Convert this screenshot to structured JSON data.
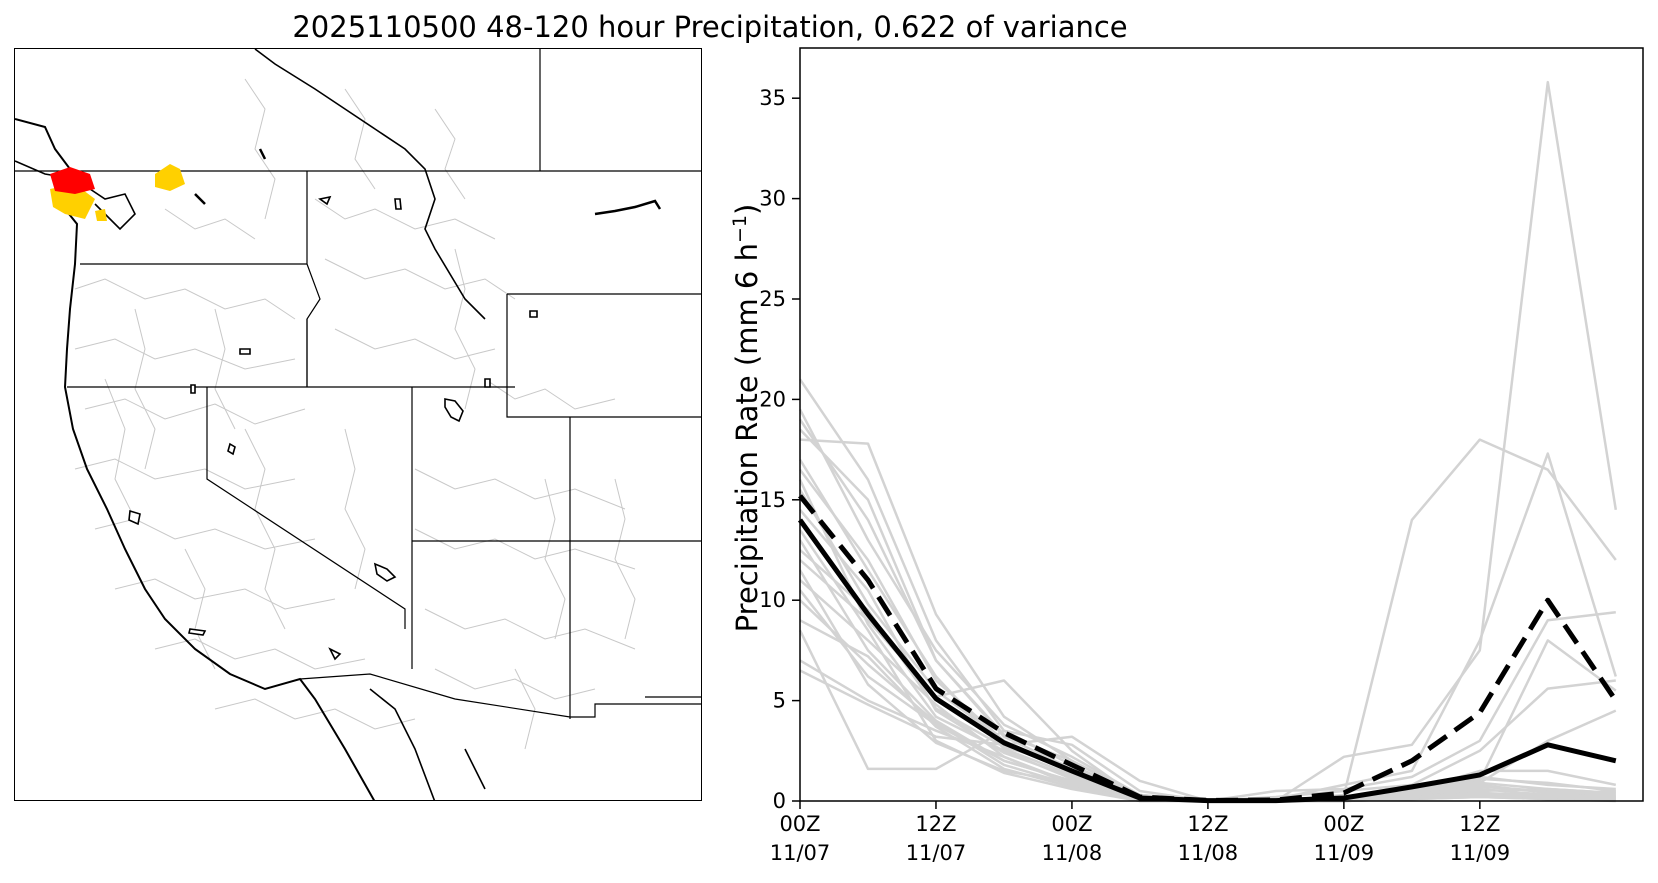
{
  "title": "2025110500 48-120 hour Precipitation, 0.622 of variance",
  "map": {
    "description_regions": [
      "Washington",
      "Oregon",
      "California",
      "Nevada",
      "Idaho",
      "Utah",
      "Arizona",
      "Montana",
      "Wyoming",
      "British Columbia"
    ],
    "colors": {
      "border": "#000000",
      "basin": "#c8c8c8",
      "highlight_high": "#ff0000",
      "highlight_mid": "#ffd000",
      "lake_fill": "#ffffff"
    }
  },
  "chart_data": {
    "type": "line",
    "title": "",
    "xlabel": "",
    "ylabel": "Precipitation Rate (mm 6 h",
    "ylabel_sup": "−1",
    "ylabel_close": ")",
    "ylim": [
      0,
      37.5
    ],
    "yticks": [
      0,
      5,
      10,
      15,
      20,
      25,
      30,
      35
    ],
    "x": [
      0,
      1,
      2,
      3,
      4,
      5,
      6,
      7,
      8,
      9,
      10,
      11,
      12
    ],
    "xlim": [
      0,
      12.4
    ],
    "xticks": [
      {
        "x": 0,
        "line1": "00Z",
        "line2": "11/07"
      },
      {
        "x": 2,
        "line1": "12Z",
        "line2": "11/07"
      },
      {
        "x": 4,
        "line1": "00Z",
        "line2": "11/08"
      },
      {
        "x": 6,
        "line1": "12Z",
        "line2": "11/08"
      },
      {
        "x": 8,
        "line1": "00Z",
        "line2": "11/09"
      },
      {
        "x": 10,
        "line1": "12Z",
        "line2": "11/09"
      }
    ],
    "series": [
      {
        "name": "mean",
        "style": "solid",
        "color": "#000000",
        "width": 5,
        "values": [
          14.0,
          9.3,
          5.1,
          2.9,
          1.5,
          0.15,
          0.02,
          0.02,
          0.15,
          0.7,
          1.3,
          2.8,
          2.0
        ]
      },
      {
        "name": "selected",
        "style": "dashed",
        "color": "#000000",
        "width": 5,
        "values": [
          15.2,
          11.0,
          5.6,
          3.4,
          1.8,
          0.2,
          0.03,
          0.05,
          0.4,
          2.0,
          4.4,
          10.0,
          5.0
        ]
      }
    ],
    "members": [
      [
        21.0,
        16.0,
        8.0,
        3.5,
        1.8,
        0.2,
        0.0,
        0.0,
        0.3,
        14.0,
        18.0,
        16.5,
        12.0
      ],
      [
        18.0,
        17.8,
        9.3,
        4.2,
        2.0,
        0.3,
        0.0,
        0.0,
        2.2,
        2.8,
        7.5,
        35.8,
        14.5
      ],
      [
        16.5,
        12.0,
        6.0,
        3.0,
        1.5,
        0.2,
        0.0,
        0.1,
        0.8,
        1.5,
        8.0,
        17.3,
        6.2
      ],
      [
        12.0,
        9.0,
        5.2,
        6.0,
        2.5,
        0.1,
        0.0,
        0.5,
        0.6,
        1.2,
        3.0,
        9.0,
        9.4
      ],
      [
        6.5,
        4.8,
        3.2,
        2.8,
        3.2,
        1.0,
        0.0,
        0.2,
        0.5,
        0.8,
        2.5,
        5.6,
        6.0
      ],
      [
        8.5,
        1.6,
        1.6,
        3.5,
        2.8,
        0.5,
        0.0,
        0.0,
        0.2,
        0.4,
        1.0,
        8.0,
        5.5
      ],
      [
        19.0,
        14.0,
        7.0,
        3.2,
        1.6,
        0.3,
        0.0,
        0.0,
        0.1,
        0.3,
        0.9,
        3.0,
        4.5
      ],
      [
        17.0,
        11.5,
        6.2,
        2.6,
        1.3,
        0.2,
        0.0,
        0.0,
        0.1,
        0.5,
        1.5,
        1.5,
        0.8
      ],
      [
        14.5,
        10.5,
        4.5,
        2.4,
        1.2,
        0.1,
        0.0,
        0.0,
        0.2,
        0.6,
        1.2,
        0.8,
        0.6
      ],
      [
        13.0,
        7.5,
        4.0,
        2.0,
        1.0,
        0.1,
        0.0,
        0.0,
        0.1,
        0.2,
        0.5,
        0.6,
        0.4
      ],
      [
        11.0,
        8.0,
        4.8,
        2.2,
        0.9,
        0.1,
        0.0,
        0.0,
        0.0,
        0.3,
        0.6,
        0.3,
        0.5
      ],
      [
        10.0,
        6.8,
        3.9,
        1.8,
        0.8,
        0.0,
        0.0,
        0.0,
        0.0,
        0.2,
        0.4,
        0.2,
        0.3
      ],
      [
        15.5,
        9.8,
        5.5,
        3.0,
        1.4,
        0.1,
        0.0,
        0.0,
        0.1,
        0.4,
        0.8,
        0.4,
        0.2
      ],
      [
        9.0,
        7.2,
        3.7,
        1.6,
        0.7,
        0.1,
        0.0,
        0.0,
        0.0,
        0.1,
        0.3,
        0.1,
        0.2
      ],
      [
        7.0,
        5.0,
        3.5,
        2.2,
        0.8,
        0.1,
        0.0,
        0.0,
        0.0,
        0.1,
        0.2,
        0.1,
        0.0
      ],
      [
        19.5,
        13.0,
        7.5,
        3.8,
        2.2,
        0.3,
        0.0,
        0.0,
        0.1,
        0.5,
        1.1,
        0.9,
        0.5
      ],
      [
        16.0,
        8.8,
        4.2,
        2.5,
        1.1,
        0.1,
        0.0,
        0.0,
        0.1,
        0.3,
        0.7,
        0.5,
        0.3
      ],
      [
        12.5,
        9.5,
        4.6,
        2.7,
        1.7,
        0.2,
        0.0,
        0.0,
        0.1,
        0.2,
        0.4,
        0.3,
        0.2
      ],
      [
        11.5,
        5.8,
        2.9,
        1.5,
        0.9,
        0.1,
        0.0,
        0.0,
        0.0,
        0.1,
        0.2,
        0.1,
        0.1
      ],
      [
        18.5,
        15.0,
        7.0,
        3.3,
        2.0,
        0.2,
        0.0,
        0.0,
        0.1,
        0.4,
        0.9,
        0.6,
        0.4
      ],
      [
        13.5,
        8.5,
        3.0,
        1.4,
        0.6,
        0.0,
        0.0,
        0.0,
        0.0,
        0.2,
        0.3,
        0.2,
        0.1
      ],
      [
        10.5,
        6.2,
        3.8,
        2.0,
        1.0,
        0.1,
        0.0,
        0.0,
        0.0,
        0.2,
        0.3,
        0.2,
        0.1
      ]
    ],
    "member_color": "#d3d3d3"
  }
}
